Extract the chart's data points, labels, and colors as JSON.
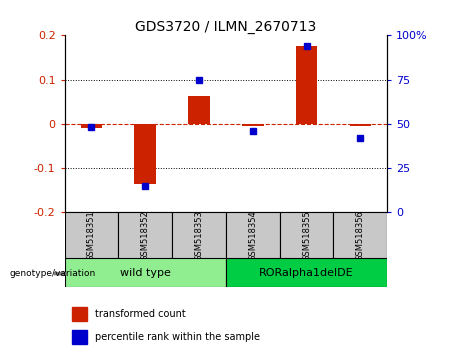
{
  "title": "GDS3720 / ILMN_2670713",
  "samples": [
    "GSM518351",
    "GSM518352",
    "GSM518353",
    "GSM518354",
    "GSM518355",
    "GSM518356"
  ],
  "groups": [
    {
      "label": "wild type",
      "samples": [
        0,
        1,
        2
      ],
      "color": "#90EE90"
    },
    {
      "label": "RORalpha1delDE",
      "samples": [
        3,
        4,
        5
      ],
      "color": "#00CC44"
    }
  ],
  "transformed_count": [
    -0.01,
    -0.135,
    0.063,
    -0.005,
    0.175,
    -0.005
  ],
  "percentile_rank_raw": [
    48,
    15,
    75,
    46,
    94,
    42
  ],
  "ylim_left": [
    -0.2,
    0.2
  ],
  "ylim_right": [
    0,
    100
  ],
  "yticks_left": [
    -0.2,
    -0.1,
    0.0,
    0.1,
    0.2
  ],
  "yticks_right_vals": [
    0,
    25,
    50,
    75,
    100
  ],
  "yticks_right_labels": [
    "0",
    "25",
    "50",
    "75",
    "100%"
  ],
  "bar_color": "#CC2200",
  "dot_color": "#0000CC",
  "zero_line_color": "#CC2200",
  "grid_color": "black",
  "legend_items": [
    {
      "label": "transformed count",
      "color": "#CC2200"
    },
    {
      "label": "percentile rank within the sample",
      "color": "#0000CC"
    }
  ],
  "group_label": "genotype/variation",
  "title_fontsize": 10,
  "tick_fontsize": 8,
  "sample_fontsize": 6,
  "group_fontsize": 8,
  "legend_fontsize": 7
}
